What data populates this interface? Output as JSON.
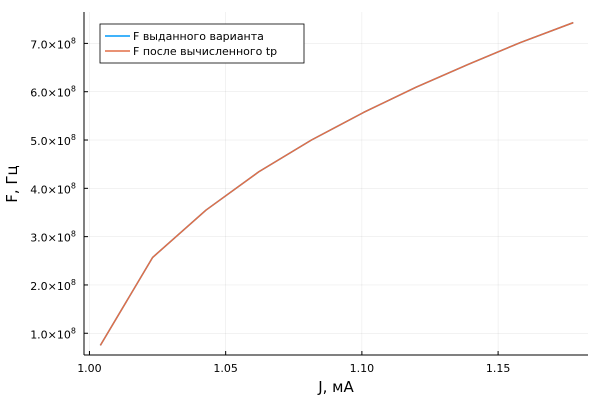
{
  "chart_data": {
    "type": "line",
    "xlabel": "J, мА",
    "ylabel": "F, Гц",
    "xlim": [
      0.998,
      1.183
    ],
    "ylim": [
      55000000,
      765000000
    ],
    "x_ticks": [
      1.0,
      1.05,
      1.1,
      1.15
    ],
    "x_tick_labels": [
      "1.00",
      "1.05",
      "1.10",
      "1.15"
    ],
    "y_ticks": [
      100000000,
      200000000,
      300000000,
      400000000,
      500000000,
      600000000,
      700000000
    ],
    "y_tick_labels": [
      {
        "mantissa": "1.0×10",
        "exp": "8"
      },
      {
        "mantissa": "2.0×10",
        "exp": "8"
      },
      {
        "mantissa": "3.0×10",
        "exp": "8"
      },
      {
        "mantissa": "4.0×10",
        "exp": "8"
      },
      {
        "mantissa": "5.0×10",
        "exp": "8"
      },
      {
        "mantissa": "6.0×10",
        "exp": "8"
      },
      {
        "mantissa": "7.0×10",
        "exp": "8"
      }
    ],
    "grid": true,
    "legend_position": "top-left",
    "series": [
      {
        "name": "F выданного варианта",
        "color": "#009AFA",
        "x": [
          1.004,
          1.0232,
          1.0428,
          1.0621,
          1.0815,
          1.1006,
          1.1198,
          1.1392,
          1.1583,
          1.1776
        ],
        "y": [
          75000000,
          257000000,
          355000000,
          434000000,
          500000000,
          557000000,
          609000000,
          657000000,
          702000000,
          743000000
        ]
      },
      {
        "name": "F после вычисленного tp",
        "color": "#E26F46",
        "x": [
          1.004,
          1.0232,
          1.0428,
          1.0621,
          1.0815,
          1.1006,
          1.1198,
          1.1392,
          1.1583,
          1.1776
        ],
        "y": [
          75000000,
          257000000,
          355000000,
          434000000,
          500000000,
          557000000,
          609000000,
          657000000,
          702000000,
          743000000
        ]
      }
    ]
  }
}
